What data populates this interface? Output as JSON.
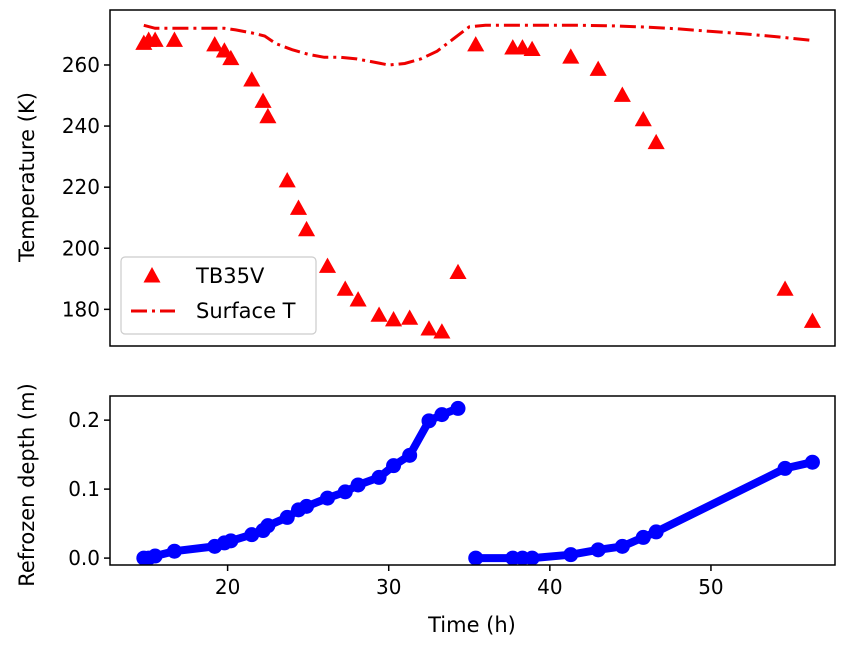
{
  "chart_data": [
    {
      "type": "scatter",
      "xlabel": "",
      "ylabel": "Temperature (K)",
      "xlim": [
        12.7,
        57.7
      ],
      "ylim": [
        168,
        278
      ],
      "yticks": [
        180,
        200,
        220,
        240,
        260
      ],
      "xticks": [],
      "legend_position": "lower-left",
      "series": [
        {
          "name": "TB35V",
          "kind": "scatter",
          "marker": "triangle-up",
          "color": "#ff0000",
          "x": [
            14.8,
            15.1,
            15.5,
            16.7,
            19.2,
            19.8,
            20.2,
            21.5,
            22.2,
            22.5,
            23.7,
            24.4,
            24.9,
            26.2,
            27.3,
            28.1,
            29.4,
            30.3,
            31.3,
            32.5,
            33.3,
            34.3,
            35.4,
            37.7,
            38.3,
            38.9,
            41.3,
            43.0,
            44.5,
            45.8,
            46.6,
            54.6,
            56.3
          ],
          "y": [
            267,
            268,
            268,
            268,
            266.5,
            264.5,
            262,
            255,
            248,
            243,
            222,
            213,
            206,
            194,
            186.5,
            183,
            178,
            176.5,
            177,
            173.5,
            172.5,
            192,
            266.5,
            265.5,
            265.5,
            265,
            262.5,
            258.5,
            250,
            242,
            234.5,
            186.5,
            176
          ]
        },
        {
          "name": "Surface T",
          "kind": "line",
          "style": "dash-dot",
          "color": "#ee0000",
          "x": [
            14.8,
            15.5,
            16.7,
            18.5,
            19.8,
            20.5,
            21.5,
            22.3,
            23.0,
            24.0,
            25.0,
            26.0,
            27.0,
            28.0,
            29.0,
            30.0,
            31.0,
            32.0,
            33.0,
            34.0,
            35.0,
            36.0,
            38.0,
            40.0,
            42.0,
            44.0,
            46.0,
            48.0,
            50.0,
            52.0,
            54.0,
            56.3
          ],
          "y": [
            273,
            272,
            272,
            272,
            272,
            271.5,
            270.5,
            269.5,
            267,
            265,
            263.5,
            262.5,
            262.5,
            262,
            261,
            260,
            260.5,
            262,
            264.5,
            268.5,
            272.5,
            273,
            273,
            273,
            273,
            272.8,
            272.4,
            271.8,
            271,
            270.2,
            269.3,
            268
          ]
        }
      ]
    },
    {
      "type": "line",
      "xlabel": "Time (h)",
      "ylabel": "Refrozen depth (m)",
      "xlim": [
        12.7,
        57.7
      ],
      "ylim": [
        -0.01,
        0.235
      ],
      "xticks": [
        20,
        30,
        40,
        50
      ],
      "yticks": [
        0.0,
        0.1,
        0.2
      ],
      "ytick_labels": [
        "0.0",
        "0.1",
        "0.2"
      ],
      "series": [
        {
          "color": "#0000ff",
          "marker": "circle",
          "x": [
            14.8,
            15.1,
            15.5,
            16.7,
            19.2,
            19.8,
            20.2,
            21.5,
            22.2,
            22.5,
            23.7,
            24.4,
            24.9,
            26.2,
            27.3,
            28.1,
            29.4,
            30.3,
            31.3,
            32.5,
            33.3,
            34.3
          ],
          "y": [
            0.0,
            0.0,
            0.003,
            0.01,
            0.017,
            0.022,
            0.025,
            0.034,
            0.04,
            0.047,
            0.059,
            0.07,
            0.075,
            0.087,
            0.096,
            0.106,
            0.117,
            0.134,
            0.149,
            0.199,
            0.208,
            0.217
          ]
        },
        {
          "color": "#0000ff",
          "marker": "circle",
          "x": [
            35.4,
            37.7,
            38.3,
            38.9,
            41.3,
            43.0,
            44.5,
            45.8,
            46.6,
            54.6,
            56.3
          ],
          "y": [
            0.0,
            0.0,
            0.0,
            0.0,
            0.005,
            0.012,
            0.017,
            0.03,
            0.038,
            0.13,
            0.139
          ]
        }
      ]
    }
  ]
}
